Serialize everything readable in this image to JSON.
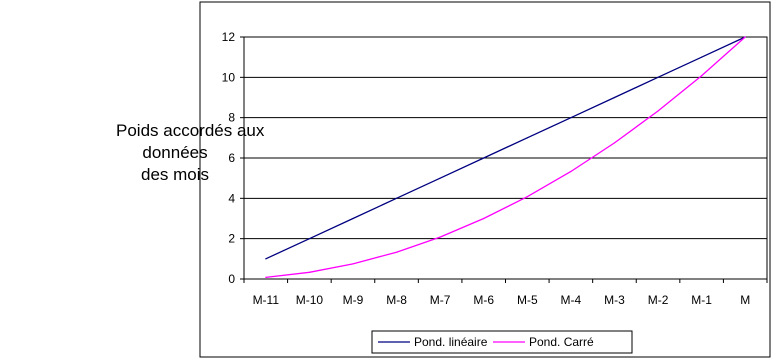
{
  "ylabel_lines": [
    "Poids accordés aux",
    "données",
    "des mois"
  ],
  "chart_data": {
    "type": "line",
    "categories": [
      "M-11",
      "M-10",
      "M-9",
      "M-8",
      "M-7",
      "M-6",
      "M-5",
      "M-4",
      "M-3",
      "M-2",
      "M-1",
      "M"
    ],
    "series": [
      {
        "name": "Pond. linéaire",
        "color": "#000080",
        "values": [
          1,
          2,
          3,
          4,
          5,
          6,
          7,
          8,
          9,
          10,
          11,
          12
        ]
      },
      {
        "name": "Pond. Carré",
        "color": "#ff00ff",
        "values": [
          0.08,
          0.33,
          0.75,
          1.33,
          2.08,
          3.0,
          4.08,
          5.33,
          6.75,
          8.33,
          10.08,
          12.0
        ]
      }
    ],
    "yticks": [
      0,
      2,
      4,
      6,
      8,
      10,
      12
    ],
    "ylim": [
      0,
      12
    ],
    "grid": true,
    "legend_position": "bottom"
  }
}
